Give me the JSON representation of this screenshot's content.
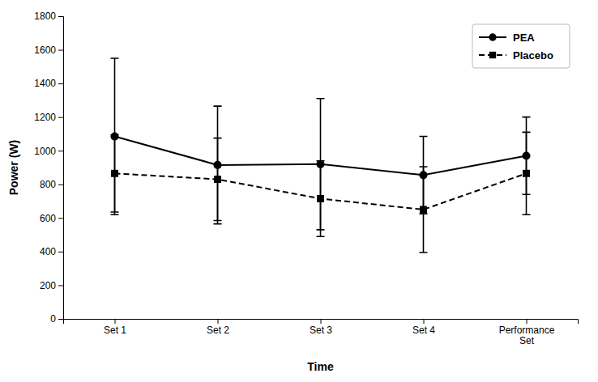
{
  "chart_data": {
    "type": "line",
    "x_label": "Time",
    "y_label": "Power (W)",
    "categories": [
      "Set 1",
      "Set 2",
      "Set 3",
      "Set 4",
      "Performance\nSet"
    ],
    "series": [
      {
        "name": "PEA",
        "color": "#000000",
        "marker": "circle",
        "line_style": "solid",
        "values": [
          1085,
          915,
          920,
          855,
          970
        ],
        "errors": [
          465,
          350,
          390,
          230,
          230
        ]
      },
      {
        "name": "Placebo",
        "color": "#000000",
        "marker": "square",
        "line_style": "dashed",
        "values": [
          865,
          830,
          715,
          650,
          865
        ],
        "errors": [
          230,
          245,
          225,
          255,
          245
        ]
      }
    ],
    "ylim": [
      0,
      1800
    ],
    "yticks": [
      0,
      200,
      400,
      600,
      800,
      1000,
      1200,
      1400,
      1600,
      1800
    ],
    "grid": false,
    "legend": "upper right"
  }
}
